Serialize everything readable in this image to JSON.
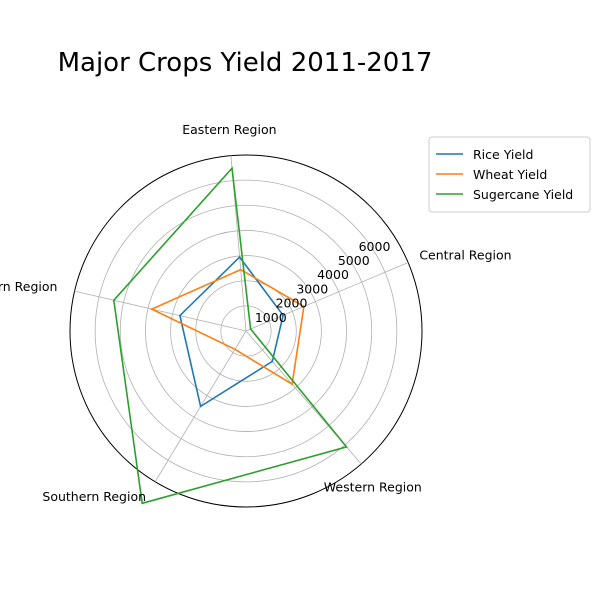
{
  "chart_data": {
    "type": "radar",
    "title": "Major Crops Yield 2011-2017",
    "categories": [
      "Central Region",
      "Eastern Region",
      "Northern Region",
      "Southern Region",
      "Western Region"
    ],
    "radial_ticks": [
      1000,
      2000,
      3000,
      4000,
      5000,
      6000
    ],
    "rlim": [
      0,
      7000
    ],
    "series": [
      {
        "name": "Rice Yield",
        "color": "#1f77b4",
        "values": [
          1600,
          2950,
          2700,
          3500,
          1600
        ]
      },
      {
        "name": "Wheat Yield",
        "color": "#ff7f0e",
        "values": [
          2500,
          2450,
          3850,
          850,
          2800
        ]
      },
      {
        "name": "Sugercane Yield",
        "color": "#2ca02c",
        "values": [
          200,
          6500,
          5400,
          8000,
          6100
        ]
      }
    ],
    "grid": true,
    "legend_position": "upper-right"
  }
}
